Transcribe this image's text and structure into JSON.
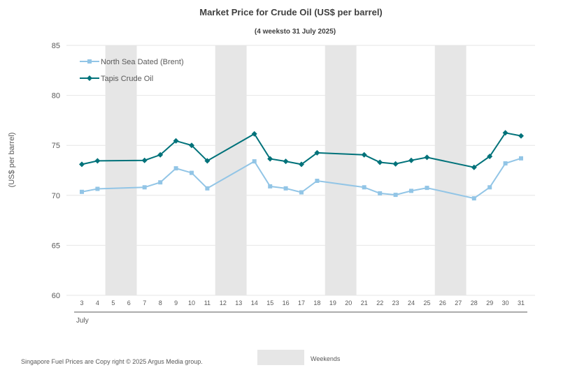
{
  "chart_data": {
    "type": "line",
    "title": "Market Price for Crude  Oil (US$ per barrel)",
    "subtitle": "(4 weeksto 31 July 2025)",
    "ylabel": "(US$ per barrel)",
    "month_label": "July",
    "ylim": [
      60,
      85
    ],
    "yticks": [
      60,
      65,
      70,
      75,
      80,
      85
    ],
    "grid": true,
    "legend_position": "top-left",
    "categories": [
      "3",
      "4",
      "5",
      "6",
      "7",
      "8",
      "9",
      "10",
      "11",
      "12",
      "13",
      "14",
      "15",
      "16",
      "17",
      "18",
      "19",
      "20",
      "21",
      "22",
      "23",
      "24",
      "25",
      "26",
      "27",
      "28",
      "29",
      "30",
      "31"
    ],
    "weekends": [
      [
        "5",
        "6"
      ],
      [
        "12",
        "13"
      ],
      [
        "19",
        "20"
      ],
      [
        "26",
        "27"
      ]
    ],
    "series": [
      {
        "name": "North Sea Dated (Brent)",
        "color": "#92c5e6",
        "marker": "square",
        "x": [
          "3",
          "4",
          "7",
          "8",
          "9",
          "10",
          "11",
          "14",
          "15",
          "16",
          "17",
          "18",
          "21",
          "22",
          "23",
          "24",
          "25",
          "28",
          "29",
          "30",
          "31"
        ],
        "values": [
          70.35,
          70.65,
          70.8,
          71.3,
          72.7,
          72.25,
          70.7,
          73.4,
          70.9,
          70.7,
          70.3,
          71.45,
          70.8,
          70.2,
          70.05,
          70.45,
          70.75,
          69.7,
          70.8,
          73.2,
          73.7
        ]
      },
      {
        "name": "Tapis Crude Oil",
        "color": "#00727a",
        "marker": "diamond",
        "x": [
          "3",
          "4",
          "7",
          "8",
          "9",
          "10",
          "11",
          "14",
          "15",
          "16",
          "17",
          "18",
          "21",
          "22",
          "23",
          "24",
          "25",
          "28",
          "29",
          "30",
          "31"
        ],
        "values": [
          73.1,
          73.45,
          73.5,
          74.05,
          75.45,
          75.0,
          73.45,
          76.15,
          73.65,
          73.4,
          73.1,
          74.25,
          74.05,
          73.3,
          73.15,
          73.5,
          73.8,
          72.8,
          73.9,
          76.25,
          75.95
        ]
      }
    ],
    "weekends_legend": "Weekends",
    "weekends_color": "#e6e6e6"
  },
  "footer": {
    "copyright": "Singapore  Fuel Prices are  Copy right © 2025 Argus Media  group."
  }
}
